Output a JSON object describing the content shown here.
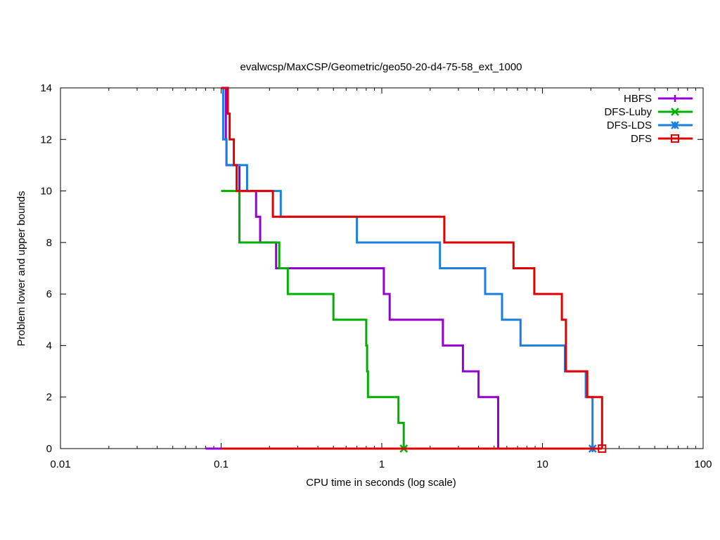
{
  "chart_data": {
    "type": "line",
    "title": "evalwcsp/MaxCSP/Geometric/geo50-20-d4-75-58_ext_1000",
    "xlabel": "CPU time in seconds (log scale)",
    "ylabel": "Problem lower and upper bounds",
    "x_scale": "log",
    "xlim": [
      0.01,
      100
    ],
    "ylim": [
      0,
      14
    ],
    "x_ticks": [
      {
        "value": 0.01,
        "label": "0.01"
      },
      {
        "value": 0.1,
        "label": "0.1"
      },
      {
        "value": 1,
        "label": "1"
      },
      {
        "value": 10,
        "label": "10"
      },
      {
        "value": 100,
        "label": "100"
      }
    ],
    "y_ticks": [
      {
        "value": 0,
        "label": "0"
      },
      {
        "value": 2,
        "label": "2"
      },
      {
        "value": 4,
        "label": "4"
      },
      {
        "value": 6,
        "label": "6"
      },
      {
        "value": 8,
        "label": "8"
      },
      {
        "value": 10,
        "label": "10"
      },
      {
        "value": 12,
        "label": "12"
      },
      {
        "value": 14,
        "label": "14"
      }
    ],
    "grid": false,
    "legend_position": "top-right",
    "series": [
      {
        "name": "HBFS",
        "color": "#9400d3",
        "marker": "plus",
        "upper": [
          [
            0.1,
            14
          ],
          [
            0.107,
            14
          ],
          [
            0.107,
            13
          ],
          [
            0.107,
            13
          ],
          [
            0.107,
            12
          ],
          [
            0.108,
            12
          ],
          [
            0.108,
            11
          ],
          [
            0.13,
            11
          ],
          [
            0.13,
            10
          ],
          [
            0.165,
            10
          ],
          [
            0.165,
            9
          ],
          [
            0.175,
            9
          ],
          [
            0.175,
            8
          ],
          [
            0.175,
            8
          ],
          [
            0.22,
            8
          ],
          [
            0.22,
            7
          ],
          [
            1.03,
            7
          ],
          [
            1.03,
            6
          ],
          [
            1.12,
            6
          ],
          [
            1.12,
            5
          ],
          [
            2.4,
            5
          ],
          [
            2.4,
            4
          ],
          [
            3.2,
            4
          ],
          [
            3.2,
            3
          ],
          [
            4.0,
            3
          ],
          [
            4.0,
            2
          ],
          [
            5.3,
            2
          ],
          [
            5.3,
            0
          ]
        ],
        "lower": [
          [
            0.08,
            0
          ],
          [
            5.3,
            0
          ]
        ]
      },
      {
        "name": "DFS-Luby",
        "color": "#00b000",
        "marker": "x",
        "upper": [
          [
            0.1,
            10
          ],
          [
            0.13,
            10
          ],
          [
            0.13,
            8
          ],
          [
            0.23,
            8
          ],
          [
            0.23,
            7
          ],
          [
            0.26,
            7
          ],
          [
            0.26,
            6
          ],
          [
            0.5,
            6
          ],
          [
            0.5,
            5
          ],
          [
            0.8,
            5
          ],
          [
            0.8,
            4
          ],
          [
            0.81,
            4
          ],
          [
            0.81,
            3
          ],
          [
            0.82,
            3
          ],
          [
            0.82,
            2
          ],
          [
            1.27,
            2
          ],
          [
            1.27,
            1
          ],
          [
            1.37,
            1
          ],
          [
            1.37,
            0
          ]
        ],
        "lower": [
          [
            0.1,
            0
          ],
          [
            1.37,
            0
          ]
        ],
        "end": [
          1.37,
          0
        ]
      },
      {
        "name": "DFS-LDS",
        "color": "#1a7fe0",
        "marker": "star",
        "upper": [
          [
            0.1,
            14
          ],
          [
            0.103,
            14
          ],
          [
            0.103,
            12
          ],
          [
            0.108,
            12
          ],
          [
            0.108,
            11
          ],
          [
            0.145,
            11
          ],
          [
            0.145,
            10
          ],
          [
            0.235,
            10
          ],
          [
            0.235,
            9
          ],
          [
            0.7,
            9
          ],
          [
            0.7,
            8
          ],
          [
            2.3,
            8
          ],
          [
            2.3,
            7
          ],
          [
            4.4,
            7
          ],
          [
            4.4,
            6
          ],
          [
            5.6,
            6
          ],
          [
            5.6,
            5
          ],
          [
            7.3,
            5
          ],
          [
            7.3,
            4
          ],
          [
            13.8,
            4
          ],
          [
            13.8,
            3
          ],
          [
            18.6,
            3
          ],
          [
            18.6,
            2
          ],
          [
            20.5,
            2
          ],
          [
            20.5,
            0
          ]
        ],
        "lower": [
          [
            0.1,
            0
          ],
          [
            20.5,
            0
          ]
        ],
        "end": [
          20.5,
          0
        ]
      },
      {
        "name": "DFS",
        "color": "#e00000",
        "marker": "square",
        "upper": [
          [
            0.1,
            14
          ],
          [
            0.11,
            14
          ],
          [
            0.11,
            13
          ],
          [
            0.113,
            13
          ],
          [
            0.113,
            12
          ],
          [
            0.12,
            12
          ],
          [
            0.12,
            11
          ],
          [
            0.12,
            11
          ],
          [
            0.125,
            11
          ],
          [
            0.125,
            10
          ],
          [
            0.21,
            10
          ],
          [
            0.21,
            9
          ],
          [
            2.45,
            9
          ],
          [
            2.45,
            8
          ],
          [
            6.6,
            8
          ],
          [
            6.6,
            7
          ],
          [
            8.9,
            7
          ],
          [
            8.9,
            6
          ],
          [
            13.2,
            6
          ],
          [
            13.2,
            5
          ],
          [
            14.0,
            5
          ],
          [
            14.0,
            4
          ],
          [
            14.0,
            3
          ],
          [
            19.0,
            3
          ],
          [
            19.0,
            2
          ],
          [
            23.5,
            2
          ],
          [
            23.5,
            0
          ]
        ],
        "lower": [
          [
            0.1,
            0
          ],
          [
            23.5,
            0
          ]
        ],
        "end": [
          23.5,
          0
        ]
      }
    ]
  }
}
